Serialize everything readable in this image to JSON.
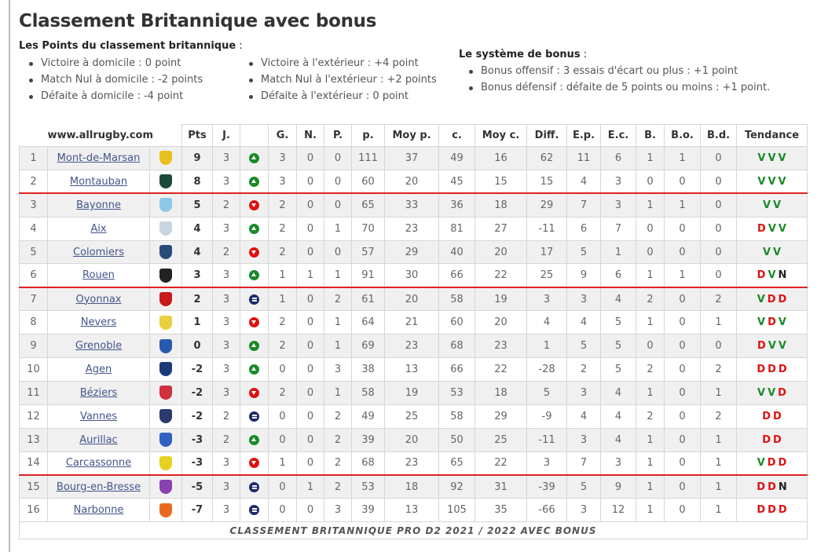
{
  "title": "Classement Britannique avec bonus",
  "points_heading": "Les Points du classement britannique",
  "colon": " :",
  "points_home": [
    "Victoire à domicile : 0 point",
    "Match Nul à domicile : -2 points",
    "Défaite à domicile : -4 point"
  ],
  "points_away": [
    "Victoire à l'extérieur : +4 point",
    "Match Nul à l'extérieur : +2 points",
    "Défaite à l'extérieur : 0 point"
  ],
  "bonus_heading": "Le système de bonus",
  "bonus_items": [
    "Bonus offensif : 3 essais d'écart ou plus : +1 point",
    "Bonus défensif : défaite de 5 points ou moins : +1 point."
  ],
  "table": {
    "site": "www.allrugby.com",
    "headers": [
      "Pts",
      "J.",
      "",
      "G.",
      "N.",
      "P.",
      "p.",
      "Moy p.",
      "c.",
      "Moy c.",
      "Diff.",
      "E.p.",
      "E.c.",
      "B.",
      "B.o.",
      "B.d.",
      "Tendance"
    ],
    "rows": [
      {
        "rank": "1",
        "team": "Mont-de-Marsan",
        "logo": "#e8c020",
        "pts": "9",
        "j": "3",
        "trend": "up",
        "g": "3",
        "n": "0",
        "p": "0",
        "pf": "111",
        "moyp": "37",
        "c": "49",
        "moyc": "16",
        "diff": "62",
        "ep": "11",
        "ec": "6",
        "b": "1",
        "bo": "1",
        "bd": "0",
        "form": [
          "V",
          "V",
          "V"
        ]
      },
      {
        "rank": "2",
        "team": "Montauban",
        "logo": "#1c4a3a",
        "pts": "8",
        "j": "3",
        "trend": "up",
        "g": "3",
        "n": "0",
        "p": "0",
        "pf": "60",
        "moyp": "20",
        "c": "45",
        "moyc": "15",
        "diff": "15",
        "ep": "4",
        "ec": "3",
        "b": "0",
        "bo": "0",
        "bd": "0",
        "form": [
          "V",
          "V",
          "V"
        ]
      },
      {
        "rank": "3",
        "team": "Bayonne",
        "logo": "#8cc8e8",
        "pts": "5",
        "j": "2",
        "trend": "down",
        "g": "2",
        "n": "0",
        "p": "0",
        "pf": "65",
        "moyp": "33",
        "c": "36",
        "moyc": "18",
        "diff": "29",
        "ep": "7",
        "ec": "3",
        "b": "1",
        "bo": "1",
        "bd": "0",
        "form": [
          "V",
          "V"
        ]
      },
      {
        "rank": "4",
        "team": "Aix",
        "logo": "#c8d4e0",
        "pts": "4",
        "j": "3",
        "trend": "up",
        "g": "2",
        "n": "0",
        "p": "1",
        "pf": "70",
        "moyp": "23",
        "c": "81",
        "moyc": "27",
        "diff": "-11",
        "ep": "6",
        "ec": "7",
        "b": "0",
        "bo": "0",
        "bd": "0",
        "form": [
          "D",
          "V",
          "V"
        ]
      },
      {
        "rank": "5",
        "team": "Colomiers",
        "logo": "#2a4a7a",
        "pts": "4",
        "j": "2",
        "trend": "down",
        "g": "2",
        "n": "0",
        "p": "0",
        "pf": "57",
        "moyp": "29",
        "c": "40",
        "moyc": "20",
        "diff": "17",
        "ep": "5",
        "ec": "1",
        "b": "0",
        "bo": "0",
        "bd": "0",
        "form": [
          "V",
          "V"
        ]
      },
      {
        "rank": "6",
        "team": "Rouen",
        "logo": "#222222",
        "pts": "3",
        "j": "3",
        "trend": "up",
        "g": "1",
        "n": "1",
        "p": "1",
        "pf": "91",
        "moyp": "30",
        "c": "66",
        "moyc": "22",
        "diff": "25",
        "ep": "9",
        "ec": "6",
        "b": "1",
        "bo": "1",
        "bd": "0",
        "form": [
          "D",
          "V",
          "N"
        ]
      },
      {
        "rank": "7",
        "team": "Oyonnax",
        "logo": "#c81a1a",
        "pts": "2",
        "j": "3",
        "trend": "eq",
        "g": "1",
        "n": "0",
        "p": "2",
        "pf": "61",
        "moyp": "20",
        "c": "58",
        "moyc": "19",
        "diff": "3",
        "ep": "3",
        "ec": "4",
        "b": "2",
        "bo": "0",
        "bd": "2",
        "form": [
          "V",
          "D",
          "D"
        ]
      },
      {
        "rank": "8",
        "team": "Nevers",
        "logo": "#e8d040",
        "pts": "1",
        "j": "3",
        "trend": "down",
        "g": "2",
        "n": "0",
        "p": "1",
        "pf": "64",
        "moyp": "21",
        "c": "60",
        "moyc": "20",
        "diff": "4",
        "ep": "4",
        "ec": "5",
        "b": "1",
        "bo": "0",
        "bd": "1",
        "form": [
          "V",
          "D",
          "V"
        ]
      },
      {
        "rank": "9",
        "team": "Grenoble",
        "logo": "#2a5ab0",
        "pts": "0",
        "j": "3",
        "trend": "up",
        "g": "2",
        "n": "0",
        "p": "1",
        "pf": "69",
        "moyp": "23",
        "c": "68",
        "moyc": "23",
        "diff": "1",
        "ep": "5",
        "ec": "5",
        "b": "0",
        "bo": "0",
        "bd": "0",
        "form": [
          "D",
          "V",
          "V"
        ]
      },
      {
        "rank": "10",
        "team": "Agen",
        "logo": "#1a3a7a",
        "pts": "-2",
        "j": "3",
        "trend": "up",
        "g": "0",
        "n": "0",
        "p": "3",
        "pf": "38",
        "moyp": "13",
        "c": "66",
        "moyc": "22",
        "diff": "-28",
        "ep": "2",
        "ec": "5",
        "b": "2",
        "bo": "0",
        "bd": "2",
        "form": [
          "D",
          "D",
          "D"
        ]
      },
      {
        "rank": "11",
        "team": "Béziers",
        "logo": "#d03040",
        "pts": "-2",
        "j": "3",
        "trend": "down",
        "g": "2",
        "n": "0",
        "p": "1",
        "pf": "58",
        "moyp": "19",
        "c": "53",
        "moyc": "18",
        "diff": "5",
        "ep": "3",
        "ec": "4",
        "b": "1",
        "bo": "0",
        "bd": "1",
        "form": [
          "V",
          "V",
          "D"
        ]
      },
      {
        "rank": "12",
        "team": "Vannes",
        "logo": "#2a3a6a",
        "pts": "-2",
        "j": "2",
        "trend": "eq",
        "g": "0",
        "n": "0",
        "p": "2",
        "pf": "49",
        "moyp": "25",
        "c": "58",
        "moyc": "29",
        "diff": "-9",
        "ep": "4",
        "ec": "4",
        "b": "2",
        "bo": "0",
        "bd": "2",
        "form": [
          "D",
          "D"
        ]
      },
      {
        "rank": "13",
        "team": "Aurillac",
        "logo": "#3060c0",
        "pts": "-3",
        "j": "2",
        "trend": "up",
        "g": "0",
        "n": "0",
        "p": "2",
        "pf": "39",
        "moyp": "20",
        "c": "50",
        "moyc": "25",
        "diff": "-11",
        "ep": "3",
        "ec": "4",
        "b": "1",
        "bo": "0",
        "bd": "1",
        "form": [
          "D",
          "D"
        ]
      },
      {
        "rank": "14",
        "team": "Carcassonne",
        "logo": "#e8d020",
        "pts": "-3",
        "j": "3",
        "trend": "down",
        "g": "1",
        "n": "0",
        "p": "2",
        "pf": "68",
        "moyp": "23",
        "c": "65",
        "moyc": "22",
        "diff": "3",
        "ep": "7",
        "ec": "3",
        "b": "1",
        "bo": "0",
        "bd": "1",
        "form": [
          "V",
          "D",
          "D"
        ]
      },
      {
        "rank": "15",
        "team": "Bourg-en-Bresse",
        "logo": "#8a40b0",
        "pts": "-5",
        "j": "3",
        "trend": "eq",
        "g": "0",
        "n": "1",
        "p": "2",
        "pf": "53",
        "moyp": "18",
        "c": "92",
        "moyc": "31",
        "diff": "-39",
        "ep": "5",
        "ec": "9",
        "b": "1",
        "bo": "0",
        "bd": "1",
        "form": [
          "D",
          "D",
          "N"
        ]
      },
      {
        "rank": "16",
        "team": "Narbonne",
        "logo": "#e86a20",
        "pts": "-7",
        "j": "3",
        "trend": "eq",
        "g": "0",
        "n": "0",
        "p": "3",
        "pf": "39",
        "moyp": "13",
        "c": "105",
        "moyc": "35",
        "diff": "-66",
        "ep": "3",
        "ec": "12",
        "b": "1",
        "bo": "0",
        "bd": "1",
        "form": [
          "D",
          "D",
          "D"
        ]
      }
    ],
    "footer": "CLASSEMENT BRITANNIQUE PRO D2 2021 / 2022 AVEC BONUS"
  }
}
